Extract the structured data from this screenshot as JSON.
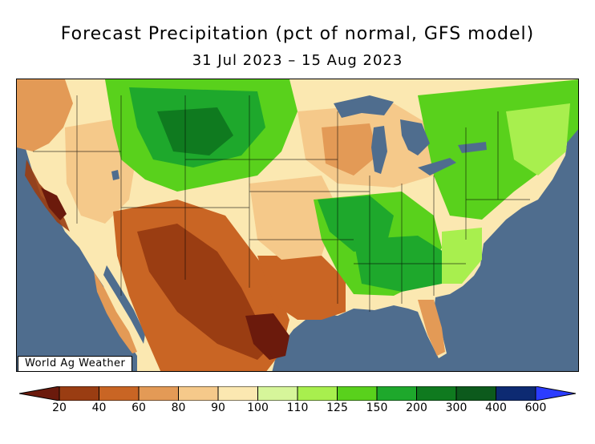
{
  "title": "Forecast Precipitation (pct of normal, GFS model)",
  "date_range": "31 Jul 2023 – 15 Aug 2023",
  "watermark": "World Ag Weather",
  "legend": {
    "ticks": [
      "20",
      "40",
      "60",
      "80",
      "90",
      "100",
      "110",
      "125",
      "150",
      "200",
      "300",
      "400",
      "600"
    ],
    "colors": [
      "#6b1a0c",
      "#9a3d12",
      "#c96524",
      "#e39a56",
      "#f5c98a",
      "#fbe8b1",
      "#d6f59a",
      "#a8ef4e",
      "#59d11c",
      "#1ea82c",
      "#0f7a1f",
      "#0c5a1c",
      "#0d2a72",
      "#1730c2",
      "#2b3cff"
    ],
    "ocean_color": "#4f6d8e",
    "lake_color": "#4f6d8e"
  }
}
